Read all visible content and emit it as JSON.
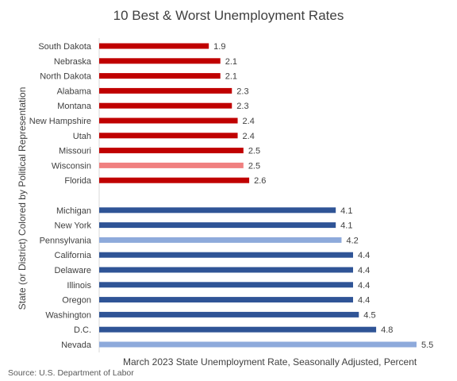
{
  "chart_data": {
    "type": "bar",
    "orientation": "horizontal",
    "title": "10 Best & Worst Unemployment Rates",
    "xlabel": "March 2023 State Unemployment Rate, Seasonally Adjusted, Percent",
    "ylabel": "State (or District) Colored by Political Representation",
    "source": "Source: U.S. Department of Labor",
    "xlim": [
      0,
      5.5
    ],
    "grid": false,
    "colors": {
      "red": "#c00000",
      "light_red": "#f08080",
      "blue": "#2f5496",
      "light_blue": "#8eaadb"
    },
    "groups": [
      {
        "bars": [
          {
            "category": "South Dakota",
            "value": 1.9,
            "color": "red"
          },
          {
            "category": "Nebraska",
            "value": 2.1,
            "color": "red"
          },
          {
            "category": "North Dakota",
            "value": 2.1,
            "color": "red"
          },
          {
            "category": "Alabama",
            "value": 2.3,
            "color": "red"
          },
          {
            "category": "Montana",
            "value": 2.3,
            "color": "red"
          },
          {
            "category": "New Hampshire",
            "value": 2.4,
            "color": "red"
          },
          {
            "category": "Utah",
            "value": 2.4,
            "color": "red"
          },
          {
            "category": "Missouri",
            "value": 2.5,
            "color": "red"
          },
          {
            "category": "Wisconsin",
            "value": 2.5,
            "color": "light_red"
          },
          {
            "category": "Florida",
            "value": 2.6,
            "color": "red"
          }
        ]
      },
      {
        "bars": [
          {
            "category": "Michigan",
            "value": 4.1,
            "color": "blue"
          },
          {
            "category": "New York",
            "value": 4.1,
            "color": "blue"
          },
          {
            "category": "Pennsylvania",
            "value": 4.2,
            "color": "light_blue"
          },
          {
            "category": "California",
            "value": 4.4,
            "color": "blue"
          },
          {
            "category": "Delaware",
            "value": 4.4,
            "color": "blue"
          },
          {
            "category": "Illinois",
            "value": 4.4,
            "color": "blue"
          },
          {
            "category": "Oregon",
            "value": 4.4,
            "color": "blue"
          },
          {
            "category": "Washington",
            "value": 4.5,
            "color": "blue"
          },
          {
            "category": "D.C.",
            "value": 4.8,
            "color": "blue"
          },
          {
            "category": "Nevada",
            "value": 5.5,
            "color": "light_blue"
          }
        ]
      }
    ]
  }
}
